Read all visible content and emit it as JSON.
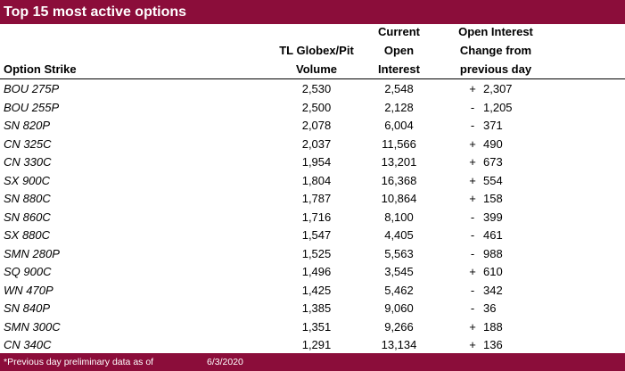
{
  "title": "Top 15 most active options",
  "headers": {
    "strike": [
      "Option Strike"
    ],
    "volume": [
      "TL Globex/Pit",
      "Volume"
    ],
    "open_interest": [
      "Current",
      "Open",
      "Interest"
    ],
    "change": [
      "Open Interest",
      "Change from",
      "previous day"
    ]
  },
  "rows": [
    {
      "strike": "BOU 275P",
      "volume": "2,530",
      "oi": "2,548",
      "sign": "+",
      "change": "2,307"
    },
    {
      "strike": "BOU 255P",
      "volume": "2,500",
      "oi": "2,128",
      "sign": "-",
      "change": "1,205"
    },
    {
      "strike": "SN 820P",
      "volume": "2,078",
      "oi": "6,004",
      "sign": "-",
      "change": "371"
    },
    {
      "strike": "CN 325C",
      "volume": "2,037",
      "oi": "11,566",
      "sign": "+",
      "change": "490"
    },
    {
      "strike": "CN 330C",
      "volume": "1,954",
      "oi": "13,201",
      "sign": "+",
      "change": "673"
    },
    {
      "strike": "SX 900C",
      "volume": "1,804",
      "oi": "16,368",
      "sign": "+",
      "change": "554"
    },
    {
      "strike": "SN 880C",
      "volume": "1,787",
      "oi": "10,864",
      "sign": "+",
      "change": "158"
    },
    {
      "strike": "SN 860C",
      "volume": "1,716",
      "oi": "8,100",
      "sign": "-",
      "change": "399"
    },
    {
      "strike": "SX 880C",
      "volume": "1,547",
      "oi": "4,405",
      "sign": "-",
      "change": "461"
    },
    {
      "strike": "SMN 280P",
      "volume": "1,525",
      "oi": "5,563",
      "sign": "-",
      "change": "988"
    },
    {
      "strike": "SQ 900C",
      "volume": "1,496",
      "oi": "3,545",
      "sign": "+",
      "change": "610"
    },
    {
      "strike": "WN 470P",
      "volume": "1,425",
      "oi": "5,462",
      "sign": "-",
      "change": "342"
    },
    {
      "strike": "SN 840P",
      "volume": "1,385",
      "oi": "9,060",
      "sign": "-",
      "change": "36"
    },
    {
      "strike": "SMN 300C",
      "volume": "1,351",
      "oi": "9,266",
      "sign": "+",
      "change": "188"
    },
    {
      "strike": "CN 340C",
      "volume": "1,291",
      "oi": "13,134",
      "sign": "+",
      "change": "136"
    }
  ],
  "footer": {
    "note": "*Previous day preliminary data as of",
    "date": "6/3/2020"
  },
  "colors": {
    "bar": "#8b0d3a",
    "bar_text": "#ffffff"
  }
}
